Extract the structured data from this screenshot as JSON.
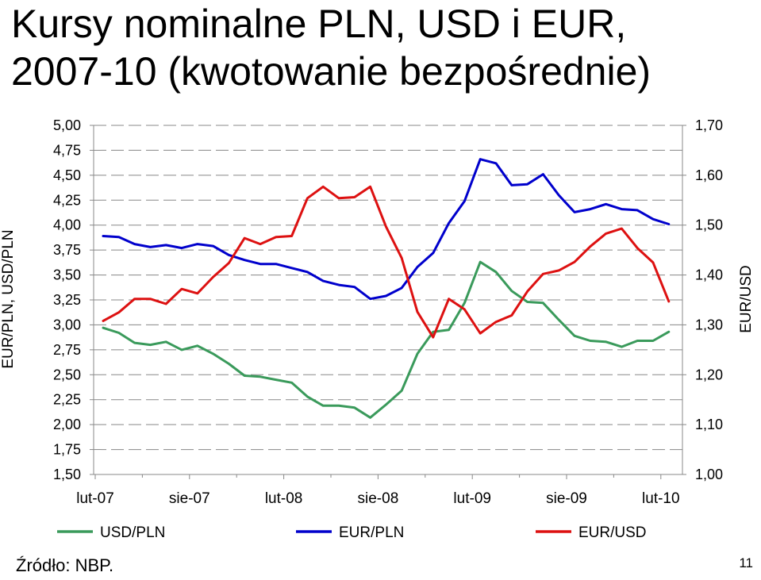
{
  "slide": {
    "title_line1": "Kursy nominalne PLN, USD i EUR,",
    "title_line2": "2007-10 (kwotowanie bezpośrednie)",
    "source": "Źródło: NBP.",
    "page_number": "11"
  },
  "chart_data": {
    "type": "line",
    "title": "Kursy nominalne PLN, USD i EUR, 2007-10 (kwotowanie bezpośrednie)",
    "x_tick_labels": [
      "lut-07",
      "sie-07",
      "lut-08",
      "sie-08",
      "lut-09",
      "sie-09",
      "lut-10"
    ],
    "x_tick_month_index": [
      0,
      6,
      12,
      18,
      24,
      30,
      36
    ],
    "ylabel_left": "EUR/PLN, USD/PLN",
    "ylabel_right": "EUR/USD",
    "ylim_left": [
      1.5,
      5.0
    ],
    "ylim_right": [
      1.0,
      1.7
    ],
    "yticks_left": [
      "5,00",
      "4,75",
      "4,50",
      "4,25",
      "4,00",
      "3,75",
      "3,50",
      "3,25",
      "3,00",
      "2,75",
      "2,50",
      "2,25",
      "2,00",
      "1,75",
      "1,50"
    ],
    "yticks_right": [
      "1,70",
      "1,60",
      "1,50",
      "1,40",
      "1,30",
      "1,20",
      "1,10",
      "1,00"
    ],
    "grid": "horizontal dashed",
    "legend_position": "bottom",
    "series": [
      {
        "name": "USD/PLN",
        "axis": "left",
        "color": "#3a9a5b",
        "values": [
          2.97,
          2.92,
          2.82,
          2.8,
          2.83,
          2.75,
          2.79,
          2.71,
          2.61,
          2.49,
          2.48,
          2.45,
          2.42,
          2.28,
          2.19,
          2.19,
          2.17,
          2.07,
          2.2,
          2.34,
          2.71,
          2.93,
          2.95,
          3.22,
          3.63,
          3.53,
          3.34,
          3.23,
          3.22,
          3.05,
          2.89,
          2.84,
          2.83,
          2.78,
          2.84,
          2.84,
          2.93
        ]
      },
      {
        "name": "EUR/PLN",
        "axis": "left",
        "color": "#0000cc",
        "values": [
          3.89,
          3.88,
          3.81,
          3.78,
          3.8,
          3.77,
          3.81,
          3.79,
          3.7,
          3.65,
          3.61,
          3.61,
          3.57,
          3.53,
          3.44,
          3.4,
          3.38,
          3.26,
          3.29,
          3.37,
          3.58,
          3.72,
          4.02,
          4.24,
          4.66,
          4.62,
          4.4,
          4.41,
          4.51,
          4.3,
          4.13,
          4.16,
          4.21,
          4.16,
          4.15,
          4.06,
          4.01
        ]
      },
      {
        "name": "EUR/USD",
        "axis": "right",
        "color": "#dd1111",
        "values": [
          1.308,
          1.325,
          1.352,
          1.352,
          1.342,
          1.372,
          1.363,
          1.396,
          1.424,
          1.474,
          1.462,
          1.476,
          1.478,
          1.554,
          1.577,
          1.554,
          1.556,
          1.577,
          1.497,
          1.434,
          1.326,
          1.275,
          1.352,
          1.331,
          1.283,
          1.306,
          1.319,
          1.367,
          1.402,
          1.409,
          1.426,
          1.457,
          1.483,
          1.493,
          1.454,
          1.425,
          1.347
        ]
      }
    ]
  }
}
